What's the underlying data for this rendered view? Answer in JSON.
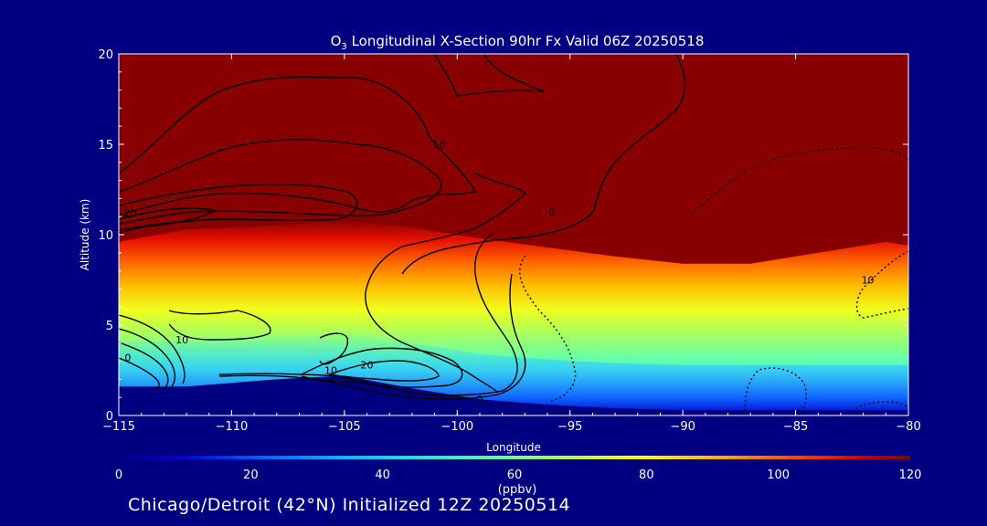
{
  "chart_data": {
    "type": "heatmap",
    "title_species": "O",
    "title_sub": "3",
    "title_rest": " Longitudinal X-Section 90hr  Fx Valid 06Z 20250518",
    "xlabel": "Longitude",
    "ylabel": "Altitude (km)",
    "xlim": [
      -115,
      -80
    ],
    "ylim": [
      0,
      20
    ],
    "xticks": [
      "−115",
      "−110",
      "−105",
      "−100",
      "−95",
      "−90",
      "−85",
      "−80"
    ],
    "xtick_values": [
      -115,
      -110,
      -105,
      -100,
      -95,
      -90,
      -85,
      -80
    ],
    "yticks": [
      "0",
      "5",
      "10",
      "15",
      "20"
    ],
    "ytick_values": [
      0,
      5,
      10,
      15,
      20
    ],
    "colorbar": {
      "label": "(ppbv)",
      "ticks": [
        "0",
        "20",
        "40",
        "60",
        "80",
        "100",
        "120"
      ],
      "tick_values": [
        0,
        20,
        40,
        60,
        80,
        100,
        120
      ],
      "range": [
        0,
        120
      ]
    },
    "field_profile": {
      "longitude": [
        -115,
        -112,
        -108,
        -105,
        -102,
        -99,
        -96,
        -93,
        -90,
        -87,
        -84,
        -81,
        -80
      ],
      "terrain_km": [
        1.6,
        1.6,
        2.0,
        2.2,
        1.5,
        0.9,
        0.6,
        0.4,
        0.3,
        0.3,
        0.3,
        0.3,
        0.3
      ],
      "tropopause_km": [
        9.6,
        10.3,
        10.5,
        10.8,
        10.4,
        9.8,
        9.3,
        8.8,
        8.4,
        8.4,
        9.0,
        9.6,
        9.4
      ]
    },
    "contour_labels": [
      {
        "text": "10",
        "lon": -100.8,
        "alt": 14.8
      },
      {
        "text": "20",
        "lon": -114.5,
        "alt": 11.0
      },
      {
        "text": "0",
        "lon": -95.8,
        "alt": 11.1
      },
      {
        "text": "10",
        "lon": -81.8,
        "alt": 7.3
      },
      {
        "text": "10",
        "lon": -112.2,
        "alt": 4.0
      },
      {
        "text": "0",
        "lon": -114.6,
        "alt": 3.0
      },
      {
        "text": "10",
        "lon": -105.6,
        "alt": 2.3
      },
      {
        "text": "20",
        "lon": -104.0,
        "alt": 2.6
      },
      {
        "text": "0",
        "lon": -99.0,
        "alt": 0.7
      }
    ]
  },
  "footer": "Chicago/Detroit (42°N) Initialized 12Z 20250514"
}
